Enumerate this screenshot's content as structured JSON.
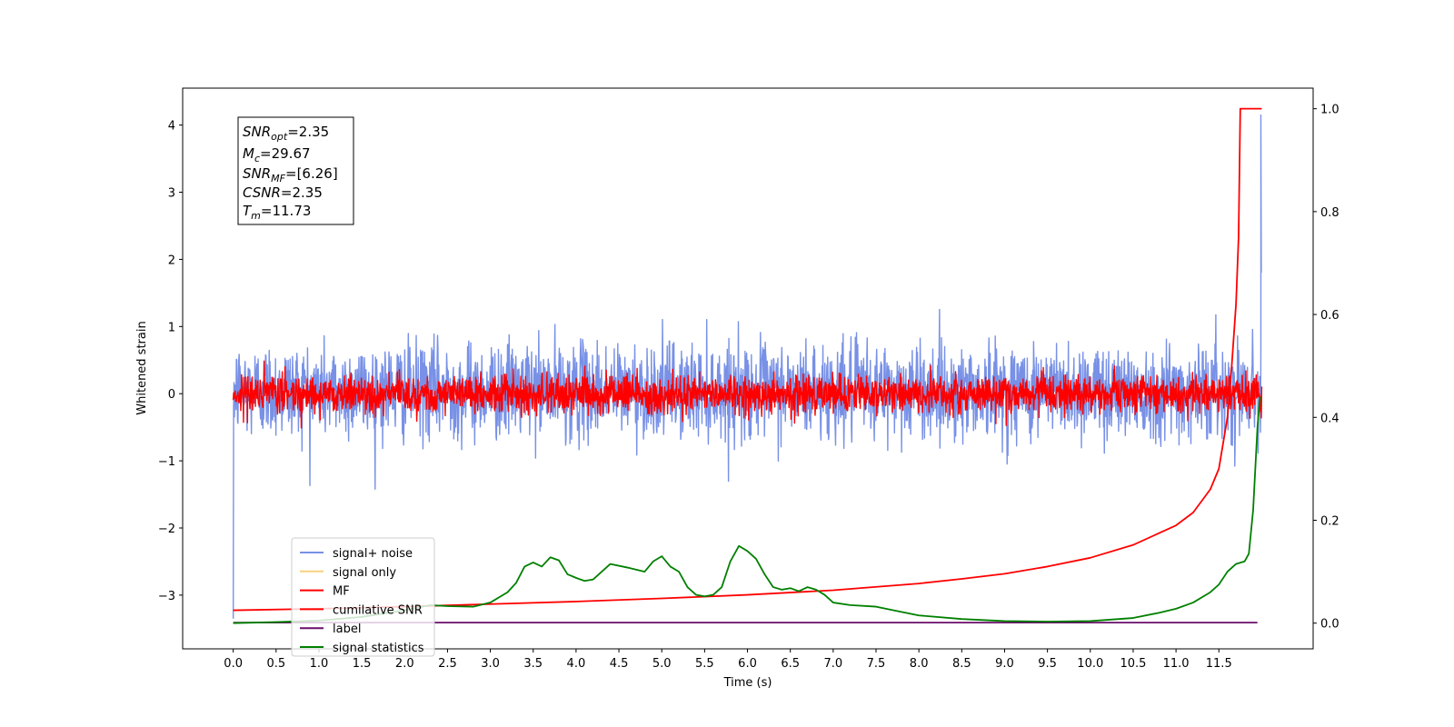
{
  "chart_data": {
    "type": "line",
    "xlabel": "Time (s)",
    "ylabel": "Whitened strain",
    "xlim": [
      -0.59,
      12.6
    ],
    "ylim_left": [
      -3.8,
      4.55
    ],
    "ylim_right": [
      -0.05,
      1.04
    ],
    "x_ticks": [
      "0.0",
      "0.5",
      "1.0",
      "1.5",
      "2.0",
      "2.5",
      "3.0",
      "3.5",
      "4.0",
      "4.5",
      "5.0",
      "5.5",
      "6.0",
      "6.5",
      "7.0",
      "7.5",
      "8.0",
      "8.5",
      "9.0",
      "9.5",
      "10.0",
      "10.5",
      "11.0",
      "11.5"
    ],
    "y_ticks_left": [
      -3,
      -2,
      -1,
      0,
      1,
      2,
      3,
      4
    ],
    "y_ticks_right": [
      "0.0",
      "0.2",
      "0.4",
      "0.6",
      "0.8",
      "1.0"
    ],
    "stats": [
      {
        "name": "SNR",
        "sub": "opt",
        "value": "=2.35"
      },
      {
        "name": "M",
        "sub": "c",
        "value": "=29.67"
      },
      {
        "name": "SNR",
        "sub": "MF",
        "value": "=[6.26]"
      },
      {
        "name": "CSNR",
        "sub": "",
        "value": "=2.35"
      },
      {
        "name": "T",
        "sub": "m",
        "value": "=11.73"
      }
    ],
    "legend": [
      {
        "label": "signal+ noise",
        "color": "#7891e6"
      },
      {
        "label": "signal only",
        "color": "#f7d27e"
      },
      {
        "label": "MF",
        "color": "#ff0000"
      },
      {
        "label": "cumilative SNR",
        "color": "#ff0000"
      },
      {
        "label": "label",
        "color": "#6a0d6a"
      },
      {
        "label": "signal statistics",
        "color": "#008000"
      }
    ],
    "series": [
      {
        "name": "signal+ noise",
        "axis": "left",
        "color": "#7891e6",
        "kind": "noise",
        "t_start": 0.0,
        "t_end": 11.99,
        "mean": 0.05,
        "amplitude": 0.45,
        "initial_value": -3.35,
        "final_spike": 4.15
      },
      {
        "name": "MF",
        "axis": "left",
        "color": "#ff0000",
        "kind": "noise",
        "t_start": 0.0,
        "t_end": 12.0,
        "mean": 0.0,
        "amplitude": 0.18
      },
      {
        "name": "cumilative SNR",
        "axis": "right",
        "color": "#ff0000",
        "x": [
          0.0,
          1.0,
          2.0,
          3.0,
          4.0,
          5.0,
          6.0,
          7.0,
          8.0,
          8.5,
          9.0,
          9.5,
          10.0,
          10.5,
          11.0,
          11.2,
          11.4,
          11.5,
          11.6,
          11.65,
          11.7,
          11.73,
          11.75,
          11.8,
          11.85,
          11.9,
          11.95,
          12.0
        ],
        "y": [
          0.025,
          0.028,
          0.032,
          0.037,
          0.042,
          0.048,
          0.055,
          0.064,
          0.077,
          0.086,
          0.096,
          0.11,
          0.127,
          0.152,
          0.19,
          0.215,
          0.26,
          0.3,
          0.4,
          0.5,
          0.62,
          0.75,
          1.0,
          1.0,
          1.0,
          1.0,
          1.0,
          1.0
        ]
      },
      {
        "name": "label",
        "axis": "right",
        "color": "#6a0d6a",
        "x": [
          0.0,
          11.95
        ],
        "y": [
          0.001,
          0.001
        ]
      },
      {
        "name": "signal statistics",
        "axis": "right",
        "color": "#008000",
        "x": [
          0.0,
          0.5,
          1.0,
          1.5,
          2.0,
          2.3,
          2.5,
          2.8,
          3.0,
          3.2,
          3.3,
          3.4,
          3.5,
          3.6,
          3.7,
          3.8,
          3.9,
          4.0,
          4.1,
          4.2,
          4.3,
          4.4,
          4.6,
          4.8,
          4.9,
          5.0,
          5.1,
          5.2,
          5.3,
          5.4,
          5.5,
          5.6,
          5.7,
          5.8,
          5.9,
          6.0,
          6.1,
          6.2,
          6.3,
          6.4,
          6.5,
          6.6,
          6.7,
          6.8,
          6.9,
          7.0,
          7.2,
          7.5,
          7.7,
          8.0,
          8.5,
          9.0,
          9.5,
          10.0,
          10.5,
          10.8,
          11.0,
          11.2,
          11.4,
          11.5,
          11.6,
          11.7,
          11.8,
          11.85,
          11.9,
          11.95,
          11.98
        ],
        "y": [
          0.0,
          0.002,
          0.005,
          0.012,
          0.025,
          0.035,
          0.033,
          0.032,
          0.04,
          0.06,
          0.078,
          0.11,
          0.118,
          0.11,
          0.128,
          0.122,
          0.095,
          0.088,
          0.082,
          0.085,
          0.1,
          0.115,
          0.108,
          0.1,
          0.12,
          0.13,
          0.11,
          0.1,
          0.07,
          0.055,
          0.052,
          0.055,
          0.07,
          0.12,
          0.15,
          0.14,
          0.125,
          0.095,
          0.07,
          0.065,
          0.068,
          0.062,
          0.07,
          0.065,
          0.055,
          0.04,
          0.035,
          0.032,
          0.025,
          0.015,
          0.008,
          0.004,
          0.003,
          0.004,
          0.01,
          0.02,
          0.028,
          0.04,
          0.06,
          0.075,
          0.1,
          0.115,
          0.12,
          0.135,
          0.22,
          0.38,
          0.44
        ]
      }
    ]
  }
}
